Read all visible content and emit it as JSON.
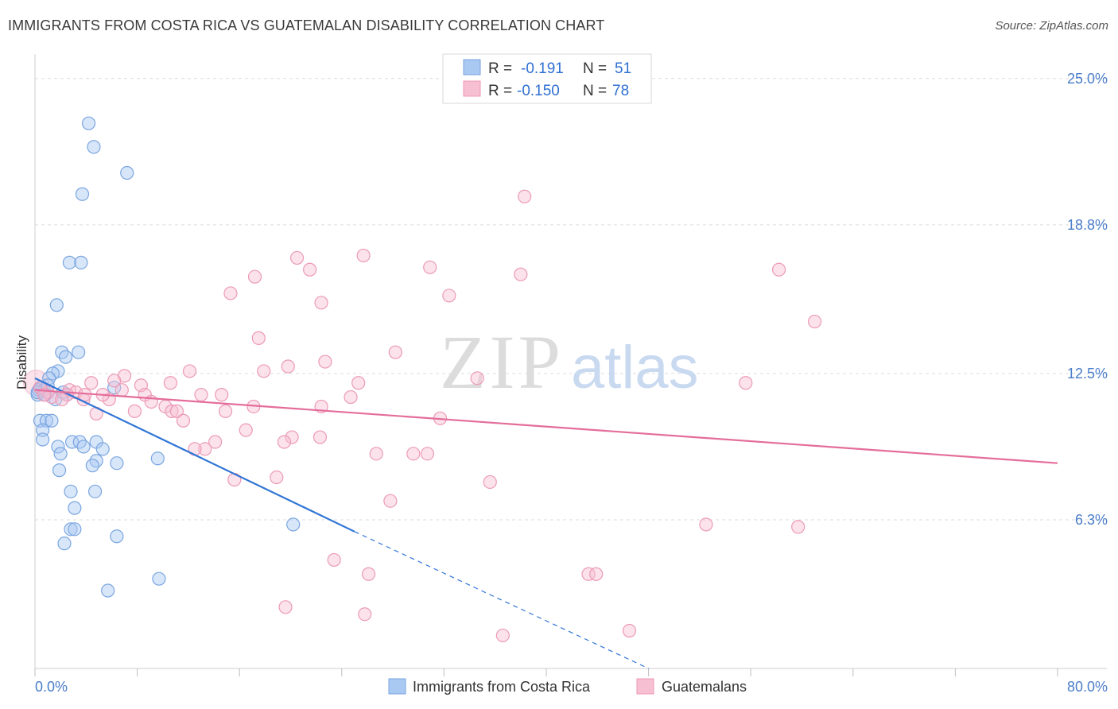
{
  "title": "IMMIGRANTS FROM COSTA RICA VS GUATEMALAN DISABILITY CORRELATION CHART",
  "source": "Source: ZipAtlas.com",
  "watermark": {
    "zip": "ZIP",
    "atlas": "atlas"
  },
  "legend_top": {
    "rows": [
      {
        "r_label": "R =",
        "r_value": "-0.191",
        "n_label": "N =",
        "n_value": "51",
        "color": "#a9c8f2",
        "edge": "#7aa6e0"
      },
      {
        "r_label": "R =",
        "r_value": "-0.150",
        "n_label": "N =",
        "n_value": "78",
        "color": "#f7bfd2",
        "edge": "#ec9ab6"
      }
    ]
  },
  "chart_data": {
    "type": "scatter",
    "title": "IMMIGRANTS FROM COSTA RICA VS GUATEMALAN DISABILITY CORRELATION CHART",
    "xlabel": "",
    "ylabel": "Disability",
    "xlim": [
      0,
      80
    ],
    "ylim": [
      0,
      25.7
    ],
    "x_tick_labels": [
      {
        "value": 0,
        "label": "0.0%"
      },
      {
        "value": 80,
        "label": "80.0%"
      }
    ],
    "y_tick_labels": [
      {
        "value": 25.0,
        "label": "25.0%"
      },
      {
        "value": 18.8,
        "label": "18.8%"
      },
      {
        "value": 12.5,
        "label": "12.5%"
      },
      {
        "value": 6.3,
        "label": "6.3%"
      }
    ],
    "grid": true,
    "legend": "bottom-center",
    "series": [
      {
        "name": "Immigrants from Costa Rica",
        "color": "#a9c8f2",
        "edge": "#7aa6e0",
        "line_color": "#2f75d6",
        "trend": {
          "x0": 0,
          "y0": 12.3,
          "x1": 25,
          "y1": 5.8,
          "dash_to_x": 48,
          "dash_to_y": 0
        },
        "points": [
          [
            4.2,
            23.1
          ],
          [
            4.6,
            22.1
          ],
          [
            7.2,
            21.0
          ],
          [
            3.7,
            20.1
          ],
          [
            2.7,
            17.2
          ],
          [
            3.6,
            17.2
          ],
          [
            1.7,
            15.4
          ],
          [
            2.1,
            13.4
          ],
          [
            3.4,
            13.4
          ],
          [
            2.4,
            13.2
          ],
          [
            1.8,
            12.6
          ],
          [
            1.4,
            12.5
          ],
          [
            1.1,
            12.3
          ],
          [
            0.5,
            11.9
          ],
          [
            0.3,
            11.8
          ],
          [
            0.7,
            11.8
          ],
          [
            0.2,
            11.6
          ],
          [
            2.5,
            11.6
          ],
          [
            1.6,
            11.4
          ],
          [
            6.2,
            11.9
          ],
          [
            0.4,
            10.5
          ],
          [
            0.9,
            10.5
          ],
          [
            1.3,
            10.5
          ],
          [
            0.6,
            10.1
          ],
          [
            0.6,
            9.7
          ],
          [
            2.9,
            9.6
          ],
          [
            3.5,
            9.6
          ],
          [
            4.8,
            9.6
          ],
          [
            1.8,
            9.4
          ],
          [
            3.8,
            9.4
          ],
          [
            5.3,
            9.3
          ],
          [
            2.0,
            9.1
          ],
          [
            9.6,
            8.9
          ],
          [
            4.8,
            8.8
          ],
          [
            6.4,
            8.7
          ],
          [
            4.5,
            8.6
          ],
          [
            1.9,
            8.4
          ],
          [
            2.8,
            7.5
          ],
          [
            4.7,
            7.5
          ],
          [
            3.1,
            6.8
          ],
          [
            2.8,
            5.9
          ],
          [
            3.1,
            5.9
          ],
          [
            6.4,
            5.6
          ],
          [
            2.3,
            5.3
          ],
          [
            20.2,
            6.1
          ],
          [
            9.7,
            3.8
          ],
          [
            5.7,
            3.3
          ],
          [
            0.2,
            11.7
          ],
          [
            1.0,
            12.0
          ],
          [
            0.8,
            11.6
          ],
          [
            2.2,
            11.7
          ]
        ]
      },
      {
        "name": "Guatemalans",
        "color": "#f7bfd2",
        "edge": "#ec9ab6",
        "line_color": "#e46d9a",
        "trend": {
          "x0": 0,
          "y0": 11.8,
          "x1": 80,
          "y1": 8.7
        },
        "points": [
          [
            38.3,
            20.0
          ],
          [
            25.7,
            17.5
          ],
          [
            20.5,
            17.4
          ],
          [
            30.9,
            17.0
          ],
          [
            21.5,
            16.9
          ],
          [
            17.2,
            16.6
          ],
          [
            38.0,
            16.7
          ],
          [
            58.2,
            16.9
          ],
          [
            15.3,
            15.9
          ],
          [
            32.4,
            15.8
          ],
          [
            22.4,
            15.5
          ],
          [
            61.0,
            14.7
          ],
          [
            17.5,
            14.0
          ],
          [
            28.2,
            13.4
          ],
          [
            22.7,
            13.0
          ],
          [
            19.8,
            12.8
          ],
          [
            17.9,
            12.6
          ],
          [
            12.1,
            12.6
          ],
          [
            34.6,
            12.3
          ],
          [
            7.0,
            12.4
          ],
          [
            6.2,
            12.2
          ],
          [
            4.4,
            12.1
          ],
          [
            8.3,
            12.0
          ],
          [
            25.3,
            12.1
          ],
          [
            10.6,
            12.1
          ],
          [
            55.6,
            12.1
          ],
          [
            6.8,
            11.8
          ],
          [
            8.6,
            11.6
          ],
          [
            2.7,
            11.8
          ],
          [
            3.2,
            11.7
          ],
          [
            2.5,
            11.6
          ],
          [
            1.3,
            11.5
          ],
          [
            13.0,
            11.6
          ],
          [
            14.6,
            11.6
          ],
          [
            3.8,
            11.4
          ],
          [
            5.8,
            11.4
          ],
          [
            24.7,
            11.5
          ],
          [
            9.1,
            11.3
          ],
          [
            10.2,
            11.1
          ],
          [
            17.1,
            11.1
          ],
          [
            22.4,
            11.1
          ],
          [
            10.7,
            10.9
          ],
          [
            11.1,
            10.9
          ],
          [
            7.8,
            10.9
          ],
          [
            14.9,
            10.9
          ],
          [
            4.8,
            10.8
          ],
          [
            31.7,
            10.6
          ],
          [
            11.6,
            10.5
          ],
          [
            16.5,
            10.1
          ],
          [
            20.1,
            9.8
          ],
          [
            22.3,
            9.8
          ],
          [
            19.5,
            9.6
          ],
          [
            14.1,
            9.6
          ],
          [
            13.3,
            9.3
          ],
          [
            12.5,
            9.3
          ],
          [
            26.7,
            9.1
          ],
          [
            29.6,
            9.1
          ],
          [
            30.7,
            9.1
          ],
          [
            18.9,
            8.1
          ],
          [
            15.6,
            8.0
          ],
          [
            35.6,
            7.9
          ],
          [
            27.8,
            7.1
          ],
          [
            52.5,
            6.1
          ],
          [
            59.7,
            6.0
          ],
          [
            23.4,
            4.6
          ],
          [
            26.1,
            4.0
          ],
          [
            43.3,
            4.0
          ],
          [
            43.9,
            4.0
          ],
          [
            19.6,
            2.6
          ],
          [
            25.8,
            2.3
          ],
          [
            36.6,
            1.4
          ],
          [
            46.5,
            1.6
          ],
          [
            1.0,
            11.7
          ],
          [
            0.4,
            11.9
          ],
          [
            0.7,
            11.6
          ],
          [
            5.3,
            11.6
          ],
          [
            2.1,
            11.4
          ],
          [
            3.9,
            11.6
          ]
        ]
      }
    ],
    "big_point": {
      "x": 0.1,
      "y": 12.1
    }
  }
}
